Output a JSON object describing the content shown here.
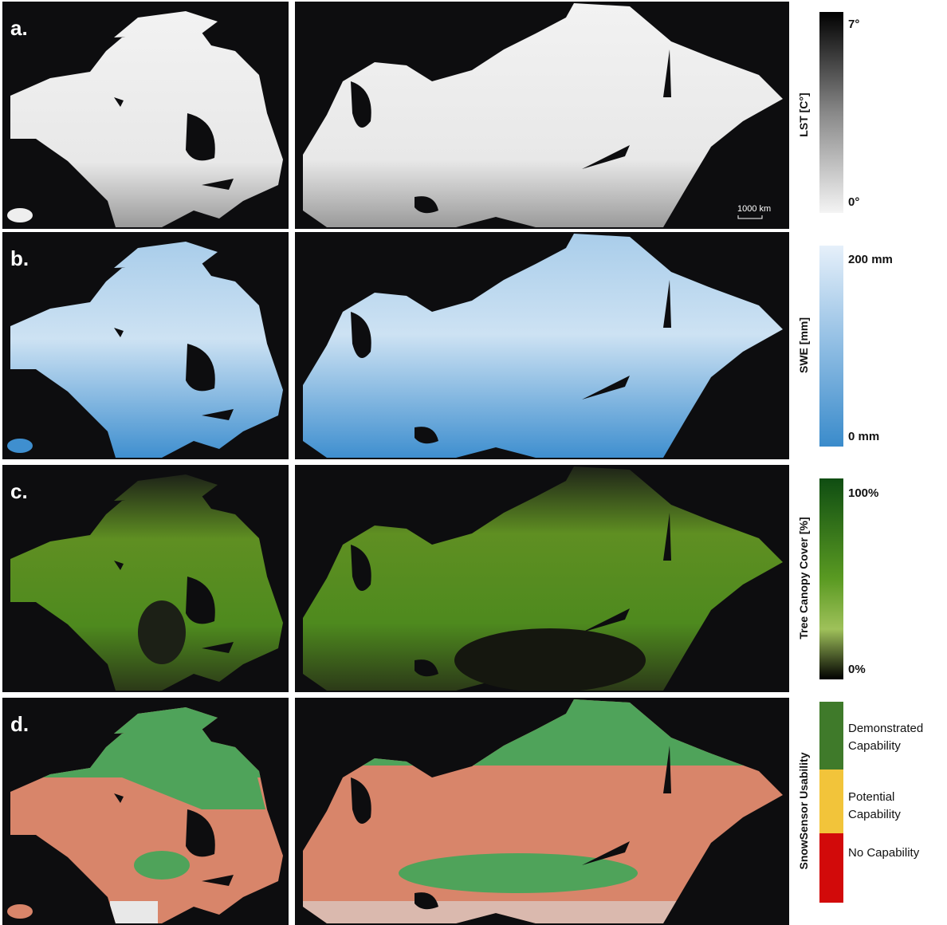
{
  "panels": [
    {
      "label": "a.",
      "title": "LST [C°]",
      "ticks": [
        "7°",
        "0°"
      ],
      "scale_bar": "1000 km"
    },
    {
      "label": "b.",
      "title": "SWE [mm]",
      "ticks": [
        "200 mm",
        "0 mm"
      ]
    },
    {
      "label": "c.",
      "title": "Tree Canopy Cover [%]",
      "ticks": [
        "100%",
        "0%"
      ]
    },
    {
      "label": "d.",
      "title": "SnowSensor Usability",
      "legend": [
        "Demonstrated Capability",
        "Potential Capability",
        "No Capability"
      ]
    }
  ]
}
